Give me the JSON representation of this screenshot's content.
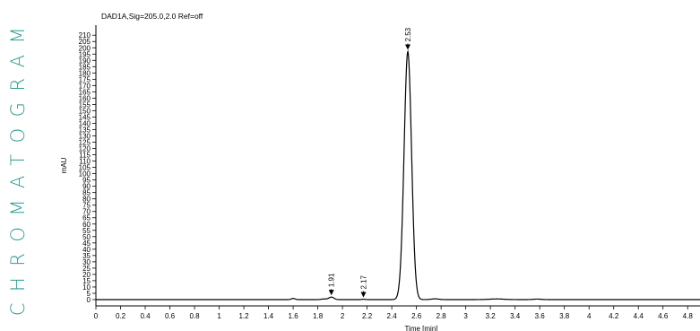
{
  "side_title": "CHROMATOGRAM",
  "colors": {
    "side_title": "#2a9d8f",
    "trace": "#000000",
    "background": "#ffffff"
  },
  "chart_data": {
    "type": "line",
    "title": "DAD1A,Sig=205.0,2.0  Ref=off",
    "xlabel": "Time [min]",
    "ylabel": "mAU",
    "xlim": [
      0,
      4.9
    ],
    "ylim": [
      -5,
      218
    ],
    "x_ticks": [
      0,
      0.2,
      0.4,
      0.6,
      0.8,
      1,
      1.2,
      1.4,
      1.6,
      1.8,
      2,
      2.2,
      2.4,
      2.6,
      2.8,
      3,
      3.2,
      3.4,
      3.6,
      3.8,
      4,
      4.2,
      4.4,
      4.6,
      4.8
    ],
    "y_ticks": [
      0,
      5,
      10,
      15,
      20,
      25,
      30,
      35,
      40,
      45,
      50,
      55,
      60,
      65,
      70,
      75,
      80,
      85,
      90,
      95,
      100,
      105,
      110,
      115,
      120,
      125,
      130,
      135,
      140,
      145,
      150,
      155,
      160,
      165,
      170,
      175,
      180,
      185,
      190,
      195,
      200,
      205,
      210
    ],
    "peaks": [
      {
        "label": "1.91",
        "x": 1.91,
        "y": 2.0
      },
      {
        "label": "2.17",
        "x": 2.17,
        "y": 0.3
      },
      {
        "label": "2.53",
        "x": 2.53,
        "y": 197
      }
    ],
    "grid": false
  }
}
